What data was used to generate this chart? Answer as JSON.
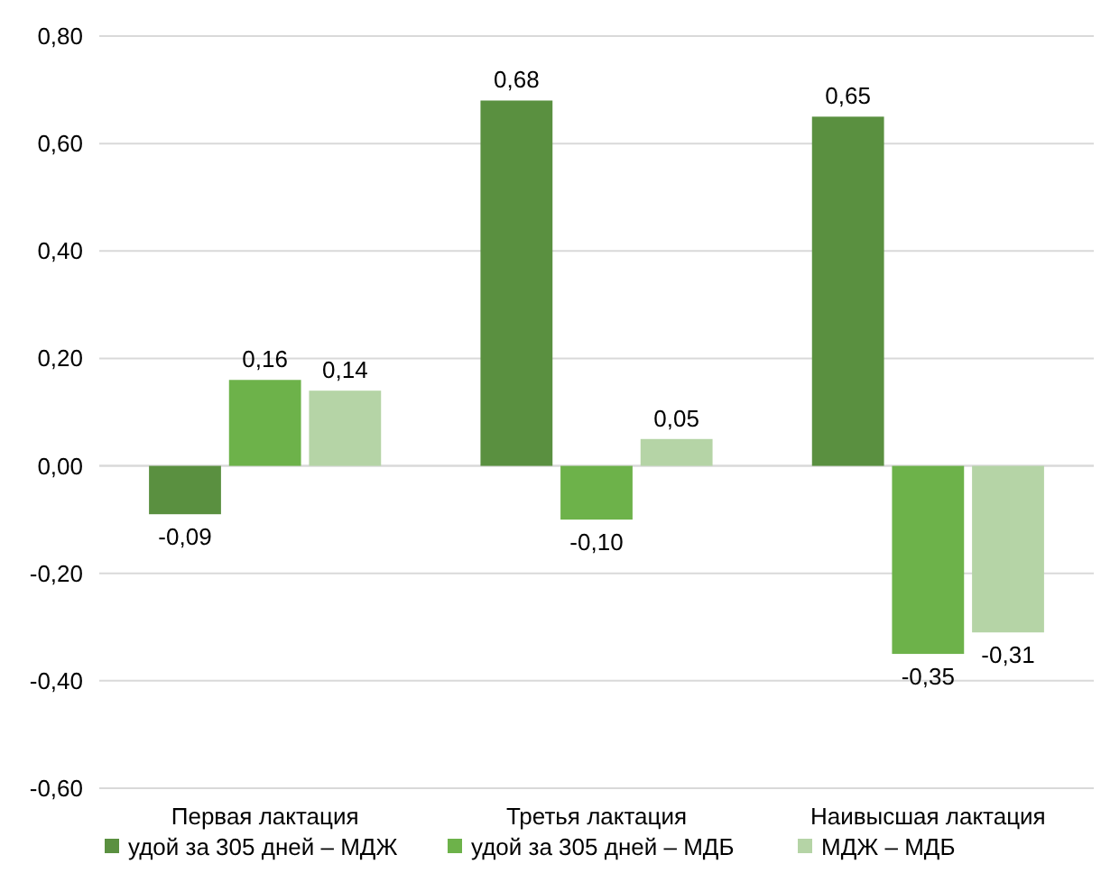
{
  "chart_data": {
    "type": "bar",
    "categories": [
      "Первая лактация",
      "Третья лактация",
      "Наивысшая лактация"
    ],
    "series": [
      {
        "name": "удой за 305 дней – МДЖ",
        "color": "#5a9040",
        "values": [
          -0.09,
          0.68,
          0.65
        ],
        "value_labels": [
          "-0,09",
          "0,68",
          "0,65"
        ]
      },
      {
        "name": "удой за 305 дней – МДБ",
        "color": "#6db24a",
        "values": [
          0.16,
          -0.1,
          -0.35
        ],
        "value_labels": [
          "0,16",
          "-0,10",
          "-0,35"
        ]
      },
      {
        "name": "МДЖ  –  МДБ",
        "color": "#b5d4a6",
        "values": [
          0.14,
          0.05,
          -0.31
        ],
        "value_labels": [
          "0,14",
          "0,05",
          "-0,31"
        ]
      }
    ],
    "ylim": [
      -0.6,
      0.8
    ],
    "yticks": [
      {
        "value": -0.6,
        "label": "-0,60"
      },
      {
        "value": -0.4,
        "label": "-0,40"
      },
      {
        "value": -0.2,
        "label": "-0,20"
      },
      {
        "value": 0,
        "label": "0,00"
      },
      {
        "value": 0.2,
        "label": "0,20"
      },
      {
        "value": 0.4,
        "label": "0,40"
      },
      {
        "value": 0.6,
        "label": "0,60"
      },
      {
        "value": 0.8,
        "label": "0,80"
      }
    ],
    "grid": "y",
    "legend": "bottom"
  }
}
